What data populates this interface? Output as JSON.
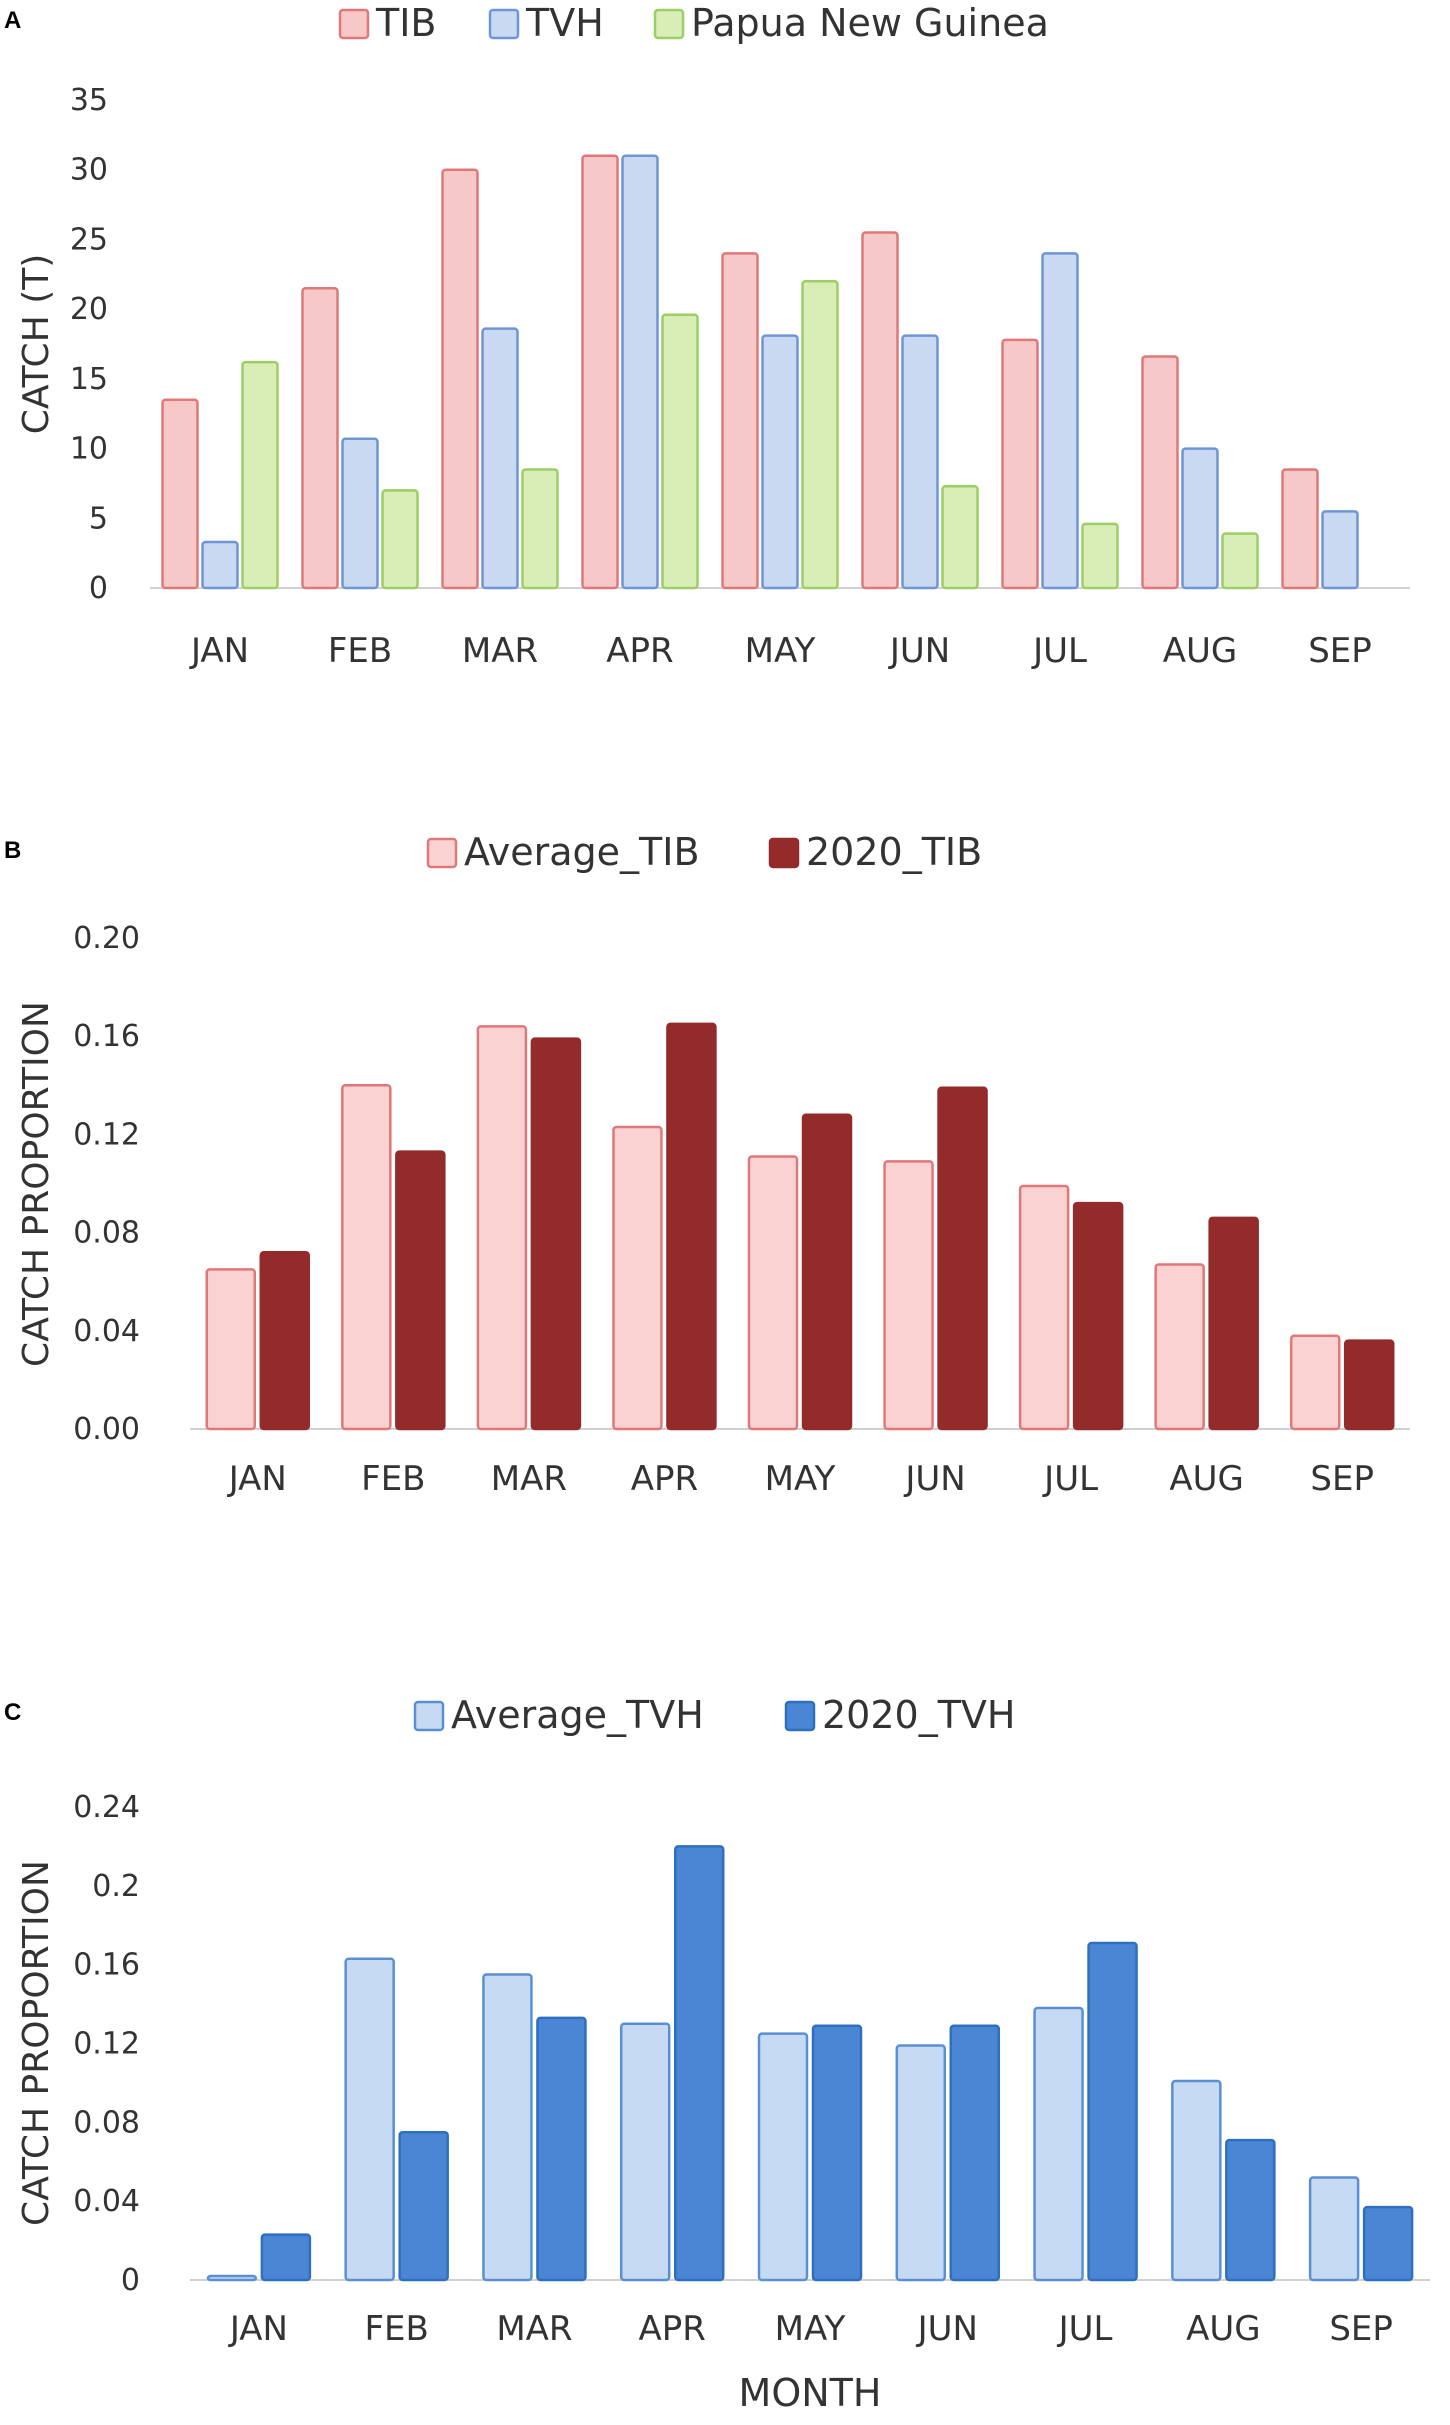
{
  "chart_data": [
    {
      "panel": "A",
      "type": "bar",
      "categories": [
        "JAN",
        "FEB",
        "MAR",
        "APR",
        "MAY",
        "JUN",
        "JUL",
        "AUG",
        "SEP"
      ],
      "series": [
        {
          "name": "TIB",
          "values": [
            13.5,
            21.5,
            30,
            31,
            24,
            25.5,
            17.8,
            16.6,
            8.5
          ],
          "fill": "#f6c8c8",
          "stroke": "#e0787a"
        },
        {
          "name": "TVH",
          "values": [
            3.3,
            10.7,
            18.6,
            31,
            18.1,
            18.1,
            24,
            10,
            5.5
          ],
          "fill": "#c9d9f2",
          "stroke": "#6e95d6"
        },
        {
          "name": "Papua New Guinea",
          "values": [
            16.2,
            7,
            8.5,
            19.6,
            22,
            7.3,
            4.6,
            3.9,
            null
          ],
          "fill": "#d9edb6",
          "stroke": "#9bcf63"
        }
      ],
      "ylabel": "CATCH (T)",
      "xlabel": "",
      "ylim": [
        0,
        35
      ],
      "yticks": [
        "0",
        "5",
        "10",
        "15",
        "20",
        "25",
        "30",
        "35"
      ]
    },
    {
      "panel": "B",
      "type": "bar",
      "categories": [
        "JAN",
        "FEB",
        "MAR",
        "APR",
        "MAY",
        "JUN",
        "JUL",
        "AUG",
        "SEP"
      ],
      "series": [
        {
          "name": "Average_TIB",
          "values": [
            0.065,
            0.14,
            0.164,
            0.123,
            0.111,
            0.109,
            0.099,
            0.067,
            0.038
          ],
          "fill": "#fad2d2",
          "stroke": "#e0787a"
        },
        {
          "name": "2020_TIB",
          "values": [
            0.072,
            0.113,
            0.159,
            0.165,
            0.128,
            0.139,
            0.092,
            0.086,
            0.036
          ],
          "fill": "#942b2b",
          "stroke": "#942b2b"
        }
      ],
      "ylabel": "CATCH PROPORTION",
      "xlabel": "",
      "ylim": [
        0,
        0.2
      ],
      "yticks": [
        "0.00",
        "0.04",
        "0.08",
        "0.12",
        "0.16",
        "0.20"
      ]
    },
    {
      "panel": "C",
      "type": "bar",
      "categories": [
        "JAN",
        "FEB",
        "MAR",
        "APR",
        "MAY",
        "JUN",
        "JUL",
        "AUG",
        "SEP"
      ],
      "series": [
        {
          "name": "Average_TVH",
          "values": [
            0.002,
            0.163,
            0.155,
            0.13,
            0.125,
            0.119,
            0.138,
            0.101,
            0.052
          ],
          "fill": "#c6dbf3",
          "stroke": "#5b8fd4"
        },
        {
          "name": "2020_TVH",
          "values": [
            0.023,
            0.075,
            0.133,
            0.22,
            0.129,
            0.129,
            0.171,
            0.071,
            0.037
          ],
          "fill": "#4a86d4",
          "stroke": "#2f6fbf"
        }
      ],
      "ylabel": "CATCH PROPORTION",
      "xlabel": "MONTH",
      "ylim": [
        0,
        0.24
      ],
      "yticks": [
        "0",
        "0.04",
        "0.08",
        "0.12",
        "0.16",
        "0.2",
        "0.24"
      ]
    }
  ]
}
